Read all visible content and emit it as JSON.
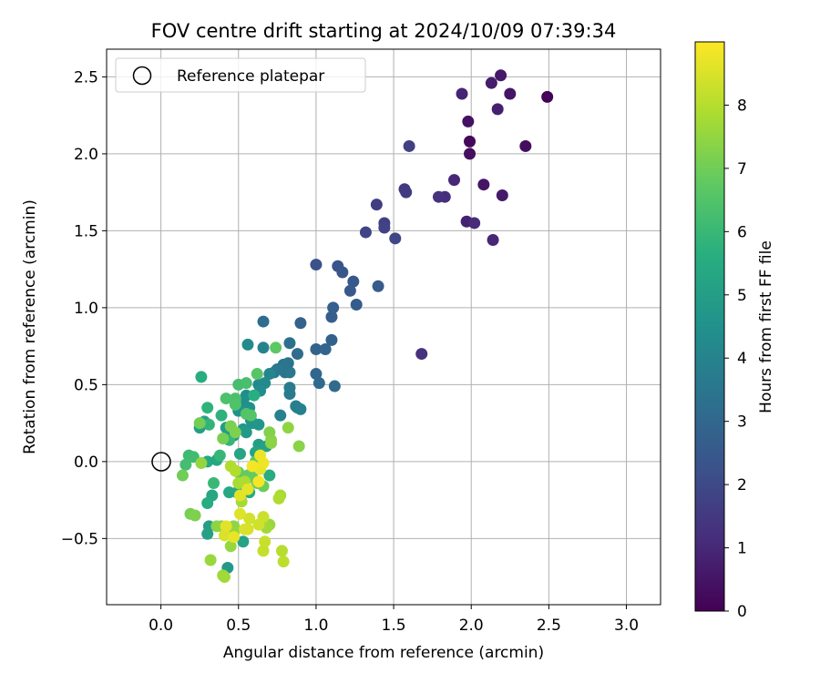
{
  "chart_data": {
    "type": "scatter",
    "title": "FOV centre drift starting at 2024/10/09 07:39:34",
    "xlabel": "Angular distance from reference (arcmin)",
    "ylabel": "Rotation from reference (arcmin)",
    "xlim": [
      -0.35,
      3.22
    ],
    "ylim": [
      -0.93,
      2.68
    ],
    "xticks": [
      0.0,
      0.5,
      1.0,
      1.5,
      2.0,
      2.5,
      3.0
    ],
    "xtick_labels": [
      "0.0",
      "0.5",
      "1.0",
      "1.5",
      "2.0",
      "2.5",
      "3.0"
    ],
    "yticks": [
      -0.5,
      0.0,
      0.5,
      1.0,
      1.5,
      2.0,
      2.5
    ],
    "ytick_labels": [
      "−0.5",
      "0.0",
      "0.5",
      "1.0",
      "1.5",
      "2.0",
      "2.5"
    ],
    "grid": true,
    "legend": {
      "position": "top-left",
      "label": "Reference platepar"
    },
    "reference_point": {
      "x": 0.0,
      "y": 0.0
    },
    "colorbar": {
      "label": "Hours from first FF file",
      "range": [
        0,
        9
      ],
      "ticks": [
        0,
        1,
        2,
        3,
        4,
        5,
        6,
        7,
        8
      ],
      "colormap": "viridis"
    },
    "points": [
      {
        "x": 2.49,
        "y": 2.37,
        "h": 0.05
      },
      {
        "x": 2.35,
        "y": 2.05,
        "h": 0.3
      },
      {
        "x": 2.25,
        "y": 2.39,
        "h": 0.5
      },
      {
        "x": 2.19,
        "y": 2.51,
        "h": 0.6
      },
      {
        "x": 2.13,
        "y": 2.46,
        "h": 0.7
      },
      {
        "x": 2.17,
        "y": 2.29,
        "h": 0.8
      },
      {
        "x": 1.94,
        "y": 2.39,
        "h": 0.9
      },
      {
        "x": 1.98,
        "y": 2.21,
        "h": 0.4
      },
      {
        "x": 1.99,
        "y": 2.08,
        "h": 0.2
      },
      {
        "x": 1.99,
        "y": 2.0,
        "h": 0.35
      },
      {
        "x": 2.08,
        "y": 1.8,
        "h": 0.5
      },
      {
        "x": 2.2,
        "y": 1.73,
        "h": 0.65
      },
      {
        "x": 1.89,
        "y": 1.83,
        "h": 1.0
      },
      {
        "x": 1.97,
        "y": 1.56,
        "h": 0.85
      },
      {
        "x": 2.02,
        "y": 1.55,
        "h": 1.1
      },
      {
        "x": 2.14,
        "y": 1.44,
        "h": 0.95
      },
      {
        "x": 1.83,
        "y": 1.72,
        "h": 1.2
      },
      {
        "x": 1.79,
        "y": 1.72,
        "h": 1.3
      },
      {
        "x": 1.6,
        "y": 2.05,
        "h": 1.7
      },
      {
        "x": 1.57,
        "y": 1.77,
        "h": 1.5
      },
      {
        "x": 1.58,
        "y": 1.75,
        "h": 1.55
      },
      {
        "x": 1.39,
        "y": 1.67,
        "h": 1.6
      },
      {
        "x": 1.44,
        "y": 1.55,
        "h": 1.7
      },
      {
        "x": 1.44,
        "y": 1.52,
        "h": 1.8
      },
      {
        "x": 1.51,
        "y": 1.45,
        "h": 1.9
      },
      {
        "x": 1.32,
        "y": 1.49,
        "h": 1.85
      },
      {
        "x": 1.68,
        "y": 0.7,
        "h": 1.25
      },
      {
        "x": 1.0,
        "y": 1.28,
        "h": 2.2
      },
      {
        "x": 1.14,
        "y": 1.27,
        "h": 2.3
      },
      {
        "x": 1.17,
        "y": 1.23,
        "h": 2.4
      },
      {
        "x": 1.24,
        "y": 1.17,
        "h": 2.45
      },
      {
        "x": 1.22,
        "y": 1.11,
        "h": 2.5
      },
      {
        "x": 1.4,
        "y": 1.14,
        "h": 2.55
      },
      {
        "x": 1.26,
        "y": 1.02,
        "h": 2.6
      },
      {
        "x": 1.11,
        "y": 1.0,
        "h": 2.7
      },
      {
        "x": 1.1,
        "y": 0.94,
        "h": 2.65
      },
      {
        "x": 0.9,
        "y": 0.9,
        "h": 2.8
      },
      {
        "x": 1.1,
        "y": 0.79,
        "h": 2.75
      },
      {
        "x": 1.0,
        "y": 0.73,
        "h": 2.85
      },
      {
        "x": 1.06,
        "y": 0.73,
        "h": 2.9
      },
      {
        "x": 1.0,
        "y": 0.57,
        "h": 3.0
      },
      {
        "x": 1.02,
        "y": 0.51,
        "h": 3.05
      },
      {
        "x": 1.12,
        "y": 0.49,
        "h": 3.1
      },
      {
        "x": 0.88,
        "y": 0.7,
        "h": 3.15
      },
      {
        "x": 0.66,
        "y": 0.91,
        "h": 3.2
      },
      {
        "x": 0.83,
        "y": 0.77,
        "h": 3.3
      },
      {
        "x": 0.82,
        "y": 0.64,
        "h": 3.4
      },
      {
        "x": 0.79,
        "y": 0.63,
        "h": 3.5
      },
      {
        "x": 0.8,
        "y": 0.58,
        "h": 3.45
      },
      {
        "x": 0.83,
        "y": 0.58,
        "h": 3.55
      },
      {
        "x": 0.75,
        "y": 0.6,
        "h": 3.6
      },
      {
        "x": 0.73,
        "y": 0.58,
        "h": 3.65
      },
      {
        "x": 0.83,
        "y": 0.48,
        "h": 3.7
      },
      {
        "x": 0.83,
        "y": 0.44,
        "h": 3.75
      },
      {
        "x": 0.87,
        "y": 0.36,
        "h": 3.8
      },
      {
        "x": 0.88,
        "y": 0.35,
        "h": 3.85
      },
      {
        "x": 0.9,
        "y": 0.34,
        "h": 3.9
      },
      {
        "x": 0.77,
        "y": 0.3,
        "h": 3.95
      },
      {
        "x": 0.66,
        "y": 0.74,
        "h": 4.0
      },
      {
        "x": 0.56,
        "y": 0.76,
        "h": 4.3
      },
      {
        "x": 0.7,
        "y": 0.57,
        "h": 4.1
      },
      {
        "x": 0.63,
        "y": 0.5,
        "h": 4.2
      },
      {
        "x": 0.67,
        "y": 0.51,
        "h": 4.25
      },
      {
        "x": 0.64,
        "y": 0.46,
        "h": 4.35
      },
      {
        "x": 0.55,
        "y": 0.43,
        "h": 4.4
      },
      {
        "x": 0.53,
        "y": 0.39,
        "h": 4.45
      },
      {
        "x": 0.57,
        "y": 0.35,
        "h": 4.5
      },
      {
        "x": 0.5,
        "y": 0.33,
        "h": 4.55
      },
      {
        "x": 0.58,
        "y": 0.27,
        "h": 4.6
      },
      {
        "x": 0.59,
        "y": 0.25,
        "h": 4.65
      },
      {
        "x": 0.63,
        "y": 0.24,
        "h": 4.7
      },
      {
        "x": 0.53,
        "y": 0.21,
        "h": 4.75
      },
      {
        "x": 0.55,
        "y": 0.19,
        "h": 4.8
      },
      {
        "x": 0.47,
        "y": 0.17,
        "h": 4.85
      },
      {
        "x": 0.43,
        "y": 0.16,
        "h": 4.9
      },
      {
        "x": 0.42,
        "y": 0.22,
        "h": 4.95
      },
      {
        "x": 0.25,
        "y": 0.22,
        "h": 5.0
      },
      {
        "x": 0.28,
        "y": 0.26,
        "h": 5.1
      },
      {
        "x": 0.63,
        "y": 0.11,
        "h": 5.05
      },
      {
        "x": 0.68,
        "y": 0.1,
        "h": 5.15
      },
      {
        "x": 0.61,
        "y": 0.06,
        "h": 5.2
      },
      {
        "x": 0.51,
        "y": 0.05,
        "h": 5.25
      },
      {
        "x": 0.3,
        "y": 0.0,
        "h": 5.3
      },
      {
        "x": 0.36,
        "y": 0.01,
        "h": 5.35
      },
      {
        "x": 0.44,
        "y": -0.2,
        "h": 5.4
      },
      {
        "x": 0.49,
        "y": -0.2,
        "h": 5.45
      },
      {
        "x": 0.57,
        "y": -0.2,
        "h": 5.5
      },
      {
        "x": 0.7,
        "y": -0.09,
        "h": 5.55
      },
      {
        "x": 0.26,
        "y": 0.55,
        "h": 5.6
      },
      {
        "x": 0.6,
        "y": 0.43,
        "h": 5.65
      },
      {
        "x": 0.48,
        "y": 0.39,
        "h": 5.7
      },
      {
        "x": 0.39,
        "y": 0.3,
        "h": 5.75
      },
      {
        "x": 0.3,
        "y": 0.35,
        "h": 5.8
      },
      {
        "x": 0.31,
        "y": 0.24,
        "h": 5.85
      },
      {
        "x": 0.44,
        "y": 0.14,
        "h": 5.9
      },
      {
        "x": 0.38,
        "y": 0.04,
        "h": 5.95
      },
      {
        "x": 0.31,
        "y": -0.42,
        "h": 5.0
      },
      {
        "x": 0.3,
        "y": -0.47,
        "h": 5.1
      },
      {
        "x": 0.43,
        "y": -0.69,
        "h": 4.8
      },
      {
        "x": 0.53,
        "y": -0.52,
        "h": 5.2
      },
      {
        "x": 0.33,
        "y": -0.22,
        "h": 5.3
      },
      {
        "x": 0.3,
        "y": -0.27,
        "h": 5.5
      },
      {
        "x": 0.34,
        "y": -0.14,
        "h": 6.0
      },
      {
        "x": 0.18,
        "y": 0.04,
        "h": 6.1
      },
      {
        "x": 0.21,
        "y": 0.03,
        "h": 6.15
      },
      {
        "x": 0.16,
        "y": -0.02,
        "h": 6.2
      },
      {
        "x": 0.5,
        "y": 0.5,
        "h": 6.25
      },
      {
        "x": 0.55,
        "y": 0.51,
        "h": 6.3
      },
      {
        "x": 0.48,
        "y": 0.41,
        "h": 6.35
      },
      {
        "x": 0.42,
        "y": 0.41,
        "h": 6.4
      },
      {
        "x": 0.48,
        "y": 0.37,
        "h": 6.45
      },
      {
        "x": 0.55,
        "y": 0.31,
        "h": 6.5
      },
      {
        "x": 0.58,
        "y": 0.3,
        "h": 6.55
      },
      {
        "x": 0.62,
        "y": 0.57,
        "h": 6.6
      },
      {
        "x": 0.74,
        "y": 0.74,
        "h": 6.7
      },
      {
        "x": 0.61,
        "y": 0.0,
        "h": 6.65
      },
      {
        "x": 0.5,
        "y": -0.07,
        "h": 6.75
      },
      {
        "x": 0.56,
        "y": -0.09,
        "h": 6.8
      },
      {
        "x": 0.59,
        "y": -0.1,
        "h": 6.85
      },
      {
        "x": 0.62,
        "y": -0.14,
        "h": 6.9
      },
      {
        "x": 0.66,
        "y": -0.16,
        "h": 6.95
      },
      {
        "x": 0.14,
        "y": -0.09,
        "h": 7.0
      },
      {
        "x": 0.25,
        "y": 0.25,
        "h": 7.05
      },
      {
        "x": 0.4,
        "y": 0.15,
        "h": 7.1
      },
      {
        "x": 0.45,
        "y": 0.23,
        "h": 7.15
      },
      {
        "x": 0.48,
        "y": 0.19,
        "h": 7.2
      },
      {
        "x": 0.7,
        "y": 0.19,
        "h": 7.25
      },
      {
        "x": 0.71,
        "y": 0.14,
        "h": 7.3
      },
      {
        "x": 0.89,
        "y": 0.1,
        "h": 7.35
      },
      {
        "x": 0.71,
        "y": 0.12,
        "h": 7.4
      },
      {
        "x": 0.82,
        "y": 0.22,
        "h": 7.45
      },
      {
        "x": 0.26,
        "y": -0.01,
        "h": 7.5
      },
      {
        "x": 0.19,
        "y": -0.34,
        "h": 7.1
      },
      {
        "x": 0.22,
        "y": -0.35,
        "h": 7.2
      },
      {
        "x": 0.39,
        "y": -0.42,
        "h": 7.3
      },
      {
        "x": 0.36,
        "y": -0.42,
        "h": 7.4
      },
      {
        "x": 0.47,
        "y": -0.42,
        "h": 7.45
      },
      {
        "x": 0.47,
        "y": -0.46,
        "h": 7.5
      },
      {
        "x": 0.45,
        "y": -0.55,
        "h": 7.55
      },
      {
        "x": 0.32,
        "y": -0.64,
        "h": 7.6
      },
      {
        "x": 0.4,
        "y": -0.74,
        "h": 7.65
      },
      {
        "x": 0.41,
        "y": -0.75,
        "h": 7.7
      },
      {
        "x": 0.52,
        "y": -0.26,
        "h": 7.75
      },
      {
        "x": 0.5,
        "y": -0.14,
        "h": 7.8
      },
      {
        "x": 0.54,
        "y": -0.13,
        "h": 7.85
      },
      {
        "x": 0.45,
        "y": -0.03,
        "h": 7.9
      },
      {
        "x": 0.48,
        "y": -0.06,
        "h": 7.95
      },
      {
        "x": 0.7,
        "y": -0.41,
        "h": 7.6
      },
      {
        "x": 0.68,
        "y": -0.43,
        "h": 7.7
      },
      {
        "x": 0.77,
        "y": -0.22,
        "h": 7.8
      },
      {
        "x": 0.76,
        "y": -0.24,
        "h": 7.9
      },
      {
        "x": 0.78,
        "y": -0.58,
        "h": 8.0
      },
      {
        "x": 0.79,
        "y": -0.65,
        "h": 8.1
      },
      {
        "x": 0.66,
        "y": -0.58,
        "h": 8.2
      },
      {
        "x": 0.67,
        "y": -0.52,
        "h": 8.25
      },
      {
        "x": 0.66,
        "y": -0.36,
        "h": 8.3
      },
      {
        "x": 0.63,
        "y": -0.41,
        "h": 8.35
      },
      {
        "x": 0.57,
        "y": -0.37,
        "h": 8.4
      },
      {
        "x": 0.56,
        "y": -0.44,
        "h": 8.45
      },
      {
        "x": 0.54,
        "y": -0.44,
        "h": 8.5
      },
      {
        "x": 0.51,
        "y": -0.34,
        "h": 8.55
      },
      {
        "x": 0.51,
        "y": -0.22,
        "h": 8.6
      },
      {
        "x": 0.56,
        "y": -0.18,
        "h": 8.65
      },
      {
        "x": 0.64,
        "y": -0.05,
        "h": 8.7
      },
      {
        "x": 0.64,
        "y": 0.04,
        "h": 8.75
      },
      {
        "x": 0.66,
        "y": -0.01,
        "h": 8.8
      },
      {
        "x": 0.59,
        "y": -0.03,
        "h": 8.85
      },
      {
        "x": 0.63,
        "y": -0.13,
        "h": 8.9
      },
      {
        "x": 0.41,
        "y": -0.48,
        "h": 8.5
      },
      {
        "x": 0.42,
        "y": -0.42,
        "h": 8.6
      },
      {
        "x": 0.47,
        "y": -0.49,
        "h": 8.7
      }
    ]
  }
}
